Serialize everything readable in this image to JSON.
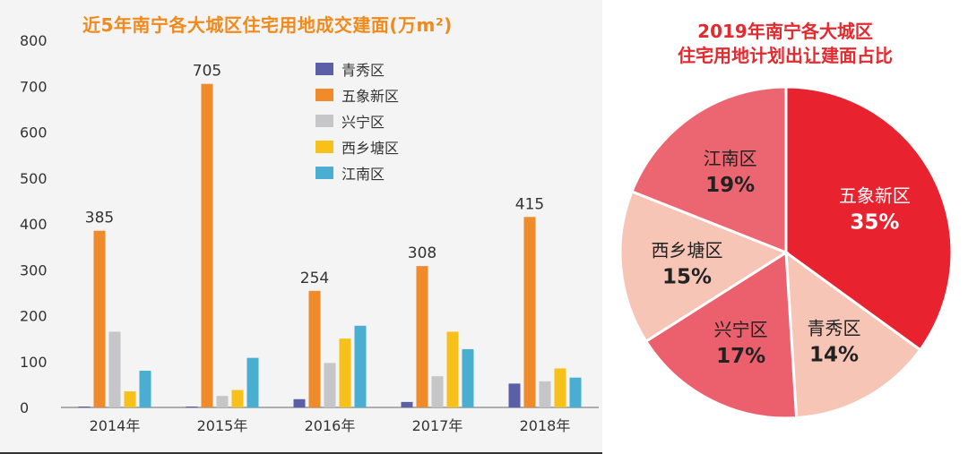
{
  "chart_data": [
    {
      "type": "bar",
      "title": "近5年南宁各大城区住宅用地成交建面(万m²)",
      "categories": [
        "2014年",
        "2015年",
        "2016年",
        "2017年",
        "2018年"
      ],
      "series": [
        {
          "name": "青秀区",
          "color": "#5a5fa8",
          "values": [
            2,
            2,
            18,
            12,
            52
          ]
        },
        {
          "name": "五象新区",
          "color": "#f08a2a",
          "values": [
            385,
            705,
            254,
            308,
            415
          ]
        },
        {
          "name": "兴宁区",
          "color": "#c6c6c8",
          "values": [
            165,
            25,
            97,
            68,
            57
          ]
        },
        {
          "name": "西乡塘区",
          "color": "#f7c11a",
          "values": [
            35,
            38,
            150,
            165,
            85
          ]
        },
        {
          "name": "江南区",
          "color": "#49aed0",
          "values": [
            80,
            108,
            178,
            127,
            65
          ]
        }
      ],
      "data_labels": [
        "385",
        "705",
        "254",
        "308",
        "415"
      ],
      "yticks": [
        "0",
        "100",
        "200",
        "300",
        "400",
        "500",
        "600",
        "700",
        "800"
      ],
      "ylim": [
        0,
        800
      ],
      "legend_position": "top-center",
      "grid": false
    },
    {
      "type": "pie",
      "title_lines": [
        "2019年南宁各大城区",
        "住宅用地计划出让建面占比"
      ],
      "slices": [
        {
          "name": "五象新区",
          "value": 35,
          "label": "35%",
          "color": "#e8232f",
          "text_color": "#ffffff"
        },
        {
          "name": "青秀区",
          "value": 14,
          "label": "14%",
          "color": "#f7c5b5",
          "text_color": "#222222"
        },
        {
          "name": "兴宁区",
          "value": 17,
          "label": "17%",
          "color": "#ec5f6c",
          "text_color": "#222222"
        },
        {
          "name": "西乡塘区",
          "value": 15,
          "label": "15%",
          "color": "#f7c5b5",
          "text_color": "#222222"
        },
        {
          "name": "江南区",
          "value": 19,
          "label": "19%",
          "color": "#ec6672",
          "text_color": "#222222"
        }
      ]
    }
  ]
}
